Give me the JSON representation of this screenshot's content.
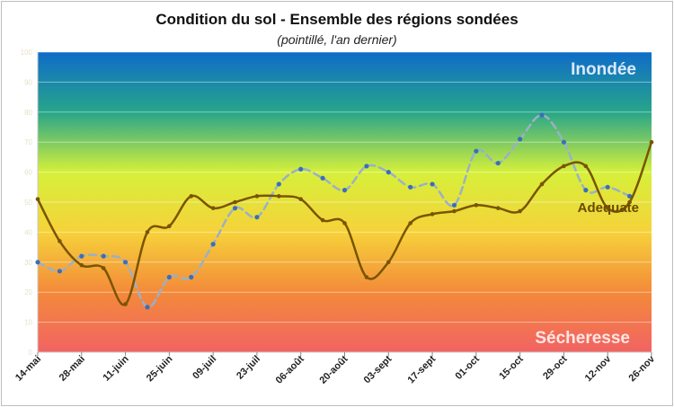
{
  "chart_data": {
    "type": "line",
    "title": "Condition du sol - Ensemble des régions sondées",
    "subtitle": "(pointillé, l'an dernier)",
    "xlabel": "",
    "ylabel": "",
    "x_tick_labels": [
      "14-mai",
      "28-mai",
      "11-juin",
      "25-juin",
      "09-juil",
      "23-juil",
      "06-août",
      "20-août",
      "03-sept",
      "17-sept",
      "01-oct",
      "15-oct",
      "29-oct",
      "12-nov",
      "26-nov"
    ],
    "y_tick_labels": [
      "0",
      "10",
      "20",
      "30",
      "40",
      "50",
      "60",
      "70",
      "80",
      "90",
      "100"
    ],
    "ylim": [
      0,
      100
    ],
    "x_index_range": [
      0,
      28
    ],
    "background_gradient_colors": [
      "#0f6cc8",
      "#27a58a",
      "#d6f03a",
      "#f6d23a",
      "#f38a3a",
      "#f26363"
    ],
    "zone_labels": {
      "top": "Inondée",
      "middle": "Adequate",
      "bottom": "Sécheresse"
    },
    "zone_label_colors": {
      "top": "#dbe9ff",
      "middle": "#6b4a00",
      "bottom": "#ffe6e6"
    },
    "series": [
      {
        "line_style": "solid",
        "color": "#7a5400",
        "points": [
          [
            0,
            51
          ],
          [
            1,
            37
          ],
          [
            2,
            29
          ],
          [
            3,
            28
          ],
          [
            4,
            16
          ],
          [
            5,
            40
          ],
          [
            6,
            42
          ],
          [
            7,
            52
          ],
          [
            8,
            48
          ],
          [
            9,
            50
          ],
          [
            10,
            52
          ],
          [
            11,
            52
          ],
          [
            12,
            51
          ],
          [
            13,
            44
          ],
          [
            14,
            43
          ],
          [
            15,
            25
          ],
          [
            16,
            30
          ],
          [
            17,
            43
          ],
          [
            18,
            46
          ],
          [
            19,
            47
          ],
          [
            20,
            49
          ],
          [
            21,
            48
          ],
          [
            22,
            47
          ],
          [
            23,
            56
          ],
          [
            24,
            62
          ],
          [
            25,
            62
          ],
          [
            26,
            48
          ],
          [
            27,
            50
          ],
          [
            28,
            70
          ]
        ]
      },
      {
        "line_style": "dashed",
        "color": "#9ab0c8",
        "points": [
          [
            0,
            30
          ],
          [
            1,
            27
          ],
          [
            2,
            32
          ],
          [
            3,
            32
          ],
          [
            4,
            30
          ],
          [
            5,
            15
          ],
          [
            6,
            25
          ],
          [
            7,
            25
          ],
          [
            8,
            36
          ],
          [
            9,
            48
          ],
          [
            10,
            45
          ],
          [
            11,
            56
          ],
          [
            12,
            61
          ],
          [
            13,
            58
          ],
          [
            14,
            54
          ],
          [
            15,
            62
          ],
          [
            16,
            60
          ],
          [
            17,
            55
          ],
          [
            18,
            56
          ],
          [
            19,
            49
          ],
          [
            20,
            67
          ],
          [
            21,
            63
          ],
          [
            22,
            71
          ],
          [
            23,
            79
          ],
          [
            24,
            70
          ],
          [
            25,
            54
          ],
          [
            26,
            55
          ],
          [
            27,
            52
          ]
        ]
      }
    ]
  }
}
